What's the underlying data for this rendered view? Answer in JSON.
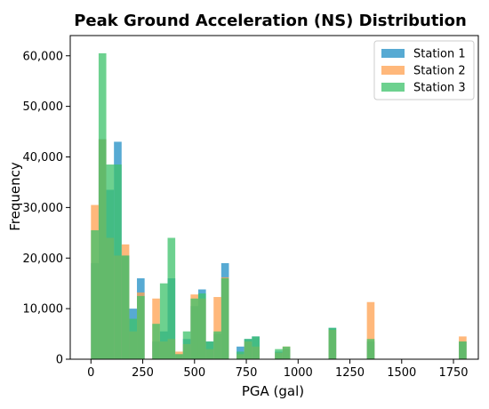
{
  "chart_data": {
    "type": "bar",
    "title": "Peak Ground Acceleration (NS) Distribution",
    "xlabel": "PGA (gal)",
    "ylabel": "Frequency",
    "xlim": [
      -100,
      1870
    ],
    "ylim": [
      0,
      64000
    ],
    "x_ticks": [
      0,
      250,
      500,
      750,
      1000,
      1250,
      1500,
      1750
    ],
    "x_tick_labels": [
      "0",
      "250",
      "500",
      "750",
      "1000",
      "1250",
      "1500",
      "1750"
    ],
    "y_ticks": [
      0,
      10000,
      20000,
      30000,
      40000,
      50000,
      60000
    ],
    "y_tick_labels": [
      "0",
      "10,000",
      "20,000",
      "30,000",
      "40,000",
      "50,000",
      "60,000"
    ],
    "grid": false,
    "legend_position": "top-right",
    "bin_width": 37,
    "bins_start": [
      0,
      37,
      74,
      111,
      148,
      185,
      222,
      259,
      296,
      333,
      370,
      407,
      444,
      481,
      518,
      555,
      592,
      629,
      666,
      703,
      740,
      777,
      814,
      851,
      888,
      925,
      962,
      999,
      1036,
      1073,
      1110,
      1147,
      1184,
      1221,
      1258,
      1295,
      1332,
      1369,
      1406,
      1443,
      1480,
      1517,
      1554,
      1591,
      1628,
      1665,
      1702,
      1739,
      1776
    ],
    "series": [
      {
        "name": "Station 1",
        "color": "#1f8ec4",
        "values": [
          19000,
          43500,
          33500,
          43000,
          20500,
          10000,
          16000,
          0,
          3500,
          5500,
          16000,
          1000,
          4000,
          10500,
          13800,
          3500,
          5000,
          19000,
          0,
          2500,
          4000,
          4500,
          0,
          0,
          1500,
          2000,
          0,
          0,
          0,
          0,
          0,
          6200,
          0,
          0,
          0,
          0,
          3500,
          0,
          0,
          0,
          0,
          0,
          0,
          0,
          0,
          0,
          0,
          0,
          3500
        ]
      },
      {
        "name": "Station 2",
        "color": "#ffa04f",
        "values": [
          30500,
          43500,
          24000,
          20500,
          22700,
          5500,
          13200,
          0,
          12000,
          3500,
          4000,
          1500,
          3000,
          12800,
          12000,
          2000,
          12300,
          16200,
          0,
          1000,
          3500,
          2500,
          0,
          0,
          1300,
          2500,
          0,
          0,
          0,
          0,
          0,
          5800,
          0,
          0,
          0,
          0,
          11300,
          0,
          0,
          0,
          0,
          0,
          0,
          0,
          0,
          0,
          0,
          0,
          4500
        ]
      },
      {
        "name": "Station 3",
        "color": "#3cc16a",
        "values": [
          25500,
          60500,
          38500,
          38500,
          20500,
          8000,
          12500,
          0,
          7000,
          15000,
          24000,
          1000,
          5500,
          12000,
          13000,
          3500,
          5500,
          16000,
          0,
          1500,
          4000,
          4500,
          0,
          0,
          2000,
          2500,
          0,
          0,
          0,
          0,
          0,
          6200,
          0,
          0,
          0,
          0,
          4000,
          0,
          0,
          0,
          0,
          0,
          0,
          0,
          0,
          0,
          0,
          0,
          3500
        ]
      }
    ]
  }
}
